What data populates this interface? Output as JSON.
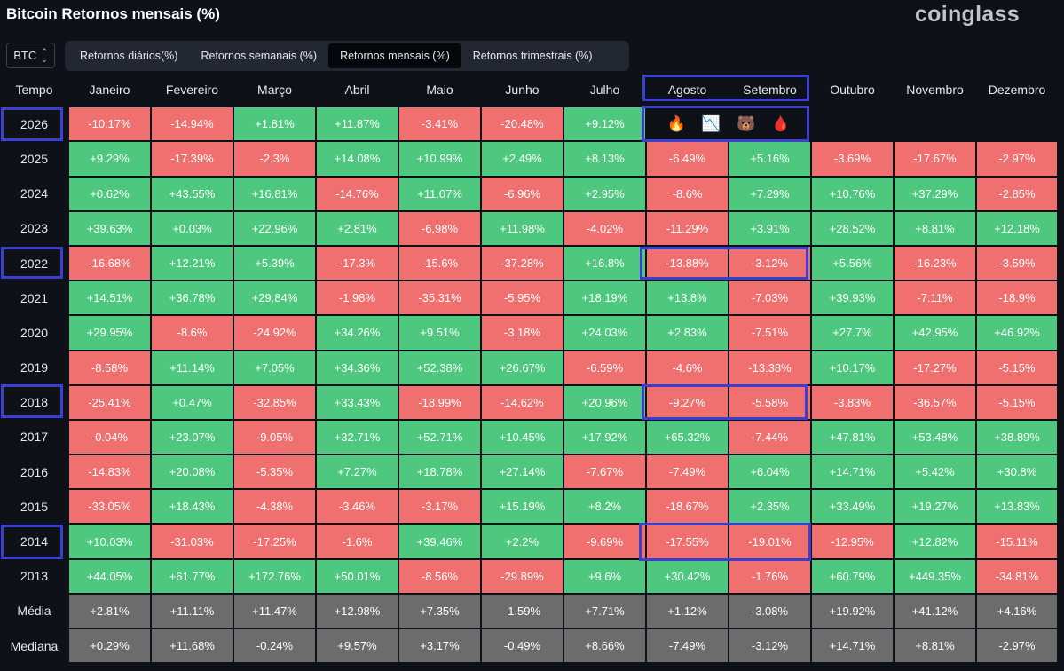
{
  "header": {
    "title": "Bitcoin Retornos mensais (%)",
    "brand": "coinglass"
  },
  "asset_select": {
    "value": "BTC"
  },
  "tabs": [
    {
      "label": "Retornos diários(%)"
    },
    {
      "label": "Retornos semanais (%)"
    },
    {
      "label": "Retornos mensais (%)"
    },
    {
      "label": "Retornos trimestrais (%)"
    }
  ],
  "active_tab": "Retornos mensais (%)",
  "table": {
    "columns": [
      "Tempo",
      "Janeiro",
      "Fevereiro",
      "Março",
      "Abril",
      "Maio",
      "Junho",
      "Julho",
      "Agosto",
      "Setembro",
      "Outubro",
      "Novembro",
      "Dezembro"
    ],
    "rows": [
      {
        "year": "2026",
        "values": [
          "-10.17%",
          "-14.94%",
          "+1.81%",
          "+11.87%",
          "-3.41%",
          "-20.48%",
          "+9.12%"
        ]
      },
      {
        "year": "2025",
        "values": [
          "+9.29%",
          "-17.39%",
          "-2.3%",
          "+14.08%",
          "+10.99%",
          "+2.49%",
          "+8.13%",
          "-6.49%",
          "+5.16%",
          "-3.69%",
          "-17.67%",
          "-2.97%"
        ]
      },
      {
        "year": "2024",
        "values": [
          "+0.62%",
          "+43.55%",
          "+16.81%",
          "-14.76%",
          "+11.07%",
          "-6.96%",
          "+2.95%",
          "-8.6%",
          "+7.29%",
          "+10.76%",
          "+37.29%",
          "-2.85%"
        ]
      },
      {
        "year": "2023",
        "values": [
          "+39.63%",
          "+0.03%",
          "+22.96%",
          "+2.81%",
          "-6.98%",
          "+11.98%",
          "-4.02%",
          "-11.29%",
          "+3.91%",
          "+28.52%",
          "+8.81%",
          "+12.18%"
        ]
      },
      {
        "year": "2022",
        "values": [
          "-16.68%",
          "+12.21%",
          "+5.39%",
          "-17.3%",
          "-15.6%",
          "-37.28%",
          "+16.8%",
          "-13.88%",
          "-3.12%",
          "+5.56%",
          "-16.23%",
          "-3.59%"
        ]
      },
      {
        "year": "2021",
        "values": [
          "+14.51%",
          "+36.78%",
          "+29.84%",
          "-1.98%",
          "-35.31%",
          "-5.95%",
          "+18.19%",
          "+13.8%",
          "-7.03%",
          "+39.93%",
          "-7.11%",
          "-18.9%"
        ]
      },
      {
        "year": "2020",
        "values": [
          "+29.95%",
          "-8.6%",
          "-24.92%",
          "+34.26%",
          "+9.51%",
          "-3.18%",
          "+24.03%",
          "+2.83%",
          "-7.51%",
          "+27.7%",
          "+42.95%",
          "+46.92%"
        ]
      },
      {
        "year": "2019",
        "values": [
          "-8.58%",
          "+11.14%",
          "+7.05%",
          "+34.36%",
          "+52.38%",
          "+26.67%",
          "-6.59%",
          "-4.6%",
          "-13.38%",
          "+10.17%",
          "-17.27%",
          "-5.15%"
        ]
      },
      {
        "year": "2018",
        "values": [
          "-25.41%",
          "+0.47%",
          "-32.85%",
          "+33.43%",
          "-18.99%",
          "-14.62%",
          "+20.96%",
          "-9.27%",
          "-5.58%",
          "-3.83%",
          "-36.57%",
          "-5.15%"
        ]
      },
      {
        "year": "2017",
        "values": [
          "-0.04%",
          "+23.07%",
          "-9.05%",
          "+32.71%",
          "+52.71%",
          "+10.45%",
          "+17.92%",
          "+65.32%",
          "-7.44%",
          "+47.81%",
          "+53.48%",
          "+38.89%"
        ]
      },
      {
        "year": "2016",
        "values": [
          "-14.83%",
          "+20.08%",
          "-5.35%",
          "+7.27%",
          "+18.78%",
          "+27.14%",
          "-7.67%",
          "-7.49%",
          "+6.04%",
          "+14.71%",
          "+5.42%",
          "+30.8%"
        ]
      },
      {
        "year": "2015",
        "values": [
          "-33.05%",
          "+18.43%",
          "-4.38%",
          "-3.46%",
          "-3.17%",
          "+15.19%",
          "+8.2%",
          "-18.67%",
          "+2.35%",
          "+33.49%",
          "+19.27%",
          "+13.83%"
        ]
      },
      {
        "year": "2014",
        "values": [
          "+10.03%",
          "-31.03%",
          "-17.25%",
          "-1.6%",
          "+39.46%",
          "+2.2%",
          "-9.69%",
          "-17.55%",
          "-19.01%",
          "-12.95%",
          "+12.82%",
          "-15.11%"
        ]
      },
      {
        "year": "2013",
        "values": [
          "+44.05%",
          "+61.77%",
          "+172.76%",
          "+50.01%",
          "-8.56%",
          "-29.89%",
          "+9.6%",
          "+30.42%",
          "-1.76%",
          "+60.79%",
          "+449.35%",
          "-34.81%"
        ]
      }
    ],
    "summary": [
      {
        "label": "Média",
        "values": [
          "+2.81%",
          "+11.11%",
          "+11.47%",
          "+12.98%",
          "+7.35%",
          "-1.59%",
          "+7.71%",
          "+1.12%",
          "-3.08%",
          "+19.92%",
          "+41.12%",
          "+4.16%"
        ]
      },
      {
        "label": "Mediana",
        "values": [
          "+0.29%",
          "+11.68%",
          "-0.24%",
          "+9.57%",
          "+3.17%",
          "-0.49%",
          "+8.66%",
          "-7.49%",
          "-3.12%",
          "+14.71%",
          "+8.81%",
          "-2.97%"
        ]
      }
    ],
    "emoji_row": [
      "🔥",
      "📉",
      "🐻",
      "🩸"
    ]
  },
  "colors": {
    "positive": "#4ec77f",
    "negative": "#f07070",
    "summary": "#6c6c6c",
    "highlight": "#3b3fd1",
    "background": "#0e1118"
  }
}
